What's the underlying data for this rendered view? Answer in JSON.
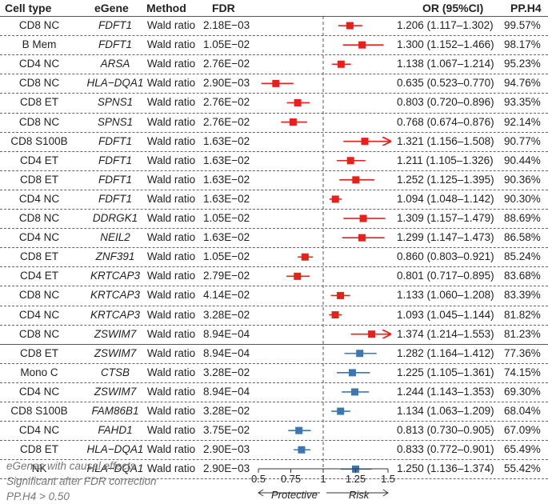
{
  "header": {
    "cell_type": "Cell type",
    "egene": "eGene",
    "method": "Method",
    "fdr": "FDR",
    "or": "OR (95%CI)",
    "pp": "PP.H4"
  },
  "footnote": [
    "eGenes with causal effects",
    "Significant after FDR correction",
    "PP.H4 > 0.50"
  ],
  "axis": {
    "protective_label": "Protective",
    "risk_label": "Risk",
    "ticks": [
      "0.5",
      "0.75",
      "1",
      "1.25",
      "1.5"
    ],
    "min": 0.5,
    "max": 1.5
  },
  "colors": {
    "risk": "#e8201c",
    "protective": "#3a78b5"
  },
  "chart_data": {
    "type": "forest",
    "xlim": [
      0.5,
      1.5
    ],
    "reference_line": 1,
    "rows": [
      {
        "cell_type": "CD8 NC",
        "egene": "FDFT1",
        "method": "Wald ratio",
        "fdr": "2.18E−03",
        "or": 1.206,
        "lo": 1.117,
        "hi": 1.302,
        "or_text": "1.206 (1.117–1.302)",
        "pp": "99.57%",
        "color": "risk",
        "arrow": false
      },
      {
        "cell_type": "B Mem",
        "egene": "FDFT1",
        "method": "Wald ratio",
        "fdr": "1.05E−02",
        "or": 1.3,
        "lo": 1.152,
        "hi": 1.466,
        "or_text": "1.300 (1.152–1.466)",
        "pp": "98.17%",
        "color": "risk",
        "arrow": false
      },
      {
        "cell_type": "CD4 NC",
        "egene": "ARSA",
        "method": "Wald ratio",
        "fdr": "2.76E−02",
        "or": 1.138,
        "lo": 1.067,
        "hi": 1.214,
        "or_text": "1.138 (1.067–1.214)",
        "pp": "95.23%",
        "color": "risk",
        "arrow": false
      },
      {
        "cell_type": "CD8 NC",
        "egene": "HLA−DQA1",
        "method": "Wald ratio",
        "fdr": "2.90E−03",
        "or": 0.635,
        "lo": 0.523,
        "hi": 0.77,
        "or_text": "0.635 (0.523–0.770)",
        "pp": "94.76%",
        "color": "risk",
        "arrow": false
      },
      {
        "cell_type": "CD8 ET",
        "egene": "SPNS1",
        "method": "Wald ratio",
        "fdr": "2.76E−02",
        "or": 0.803,
        "lo": 0.72,
        "hi": 0.896,
        "or_text": "0.803 (0.720–0.896)",
        "pp": "93.35%",
        "color": "risk",
        "arrow": false
      },
      {
        "cell_type": "CD8 NC",
        "egene": "SPNS1",
        "method": "Wald ratio",
        "fdr": "2.76E−02",
        "or": 0.768,
        "lo": 0.674,
        "hi": 0.876,
        "or_text": "0.768 (0.674–0.876)",
        "pp": "92.14%",
        "color": "risk",
        "arrow": false
      },
      {
        "cell_type": "CD8 S100B",
        "egene": "FDFT1",
        "method": "Wald ratio",
        "fdr": "1.63E−02",
        "or": 1.321,
        "lo": 1.156,
        "hi": 1.508,
        "or_text": "1.321 (1.156–1.508)",
        "pp": "90.77%",
        "color": "risk",
        "arrow": true
      },
      {
        "cell_type": "CD4 ET",
        "egene": "FDFT1",
        "method": "Wald ratio",
        "fdr": "1.63E−02",
        "or": 1.211,
        "lo": 1.105,
        "hi": 1.326,
        "or_text": "1.211 (1.105–1.326)",
        "pp": "90.44%",
        "color": "risk",
        "arrow": false
      },
      {
        "cell_type": "CD8 ET",
        "egene": "FDFT1",
        "method": "Wald ratio",
        "fdr": "1.63E−02",
        "or": 1.252,
        "lo": 1.125,
        "hi": 1.395,
        "or_text": "1.252 (1.125–1.395)",
        "pp": "90.36%",
        "color": "risk",
        "arrow": false
      },
      {
        "cell_type": "CD4 NC",
        "egene": "FDFT1",
        "method": "Wald ratio",
        "fdr": "1.63E−02",
        "or": 1.094,
        "lo": 1.048,
        "hi": 1.142,
        "or_text": "1.094 (1.048–1.142)",
        "pp": "90.30%",
        "color": "risk",
        "arrow": false
      },
      {
        "cell_type": "CD8 NC",
        "egene": "DDRGK1",
        "method": "Wald ratio",
        "fdr": "1.05E−02",
        "or": 1.309,
        "lo": 1.157,
        "hi": 1.479,
        "or_text": "1.309 (1.157–1.479)",
        "pp": "88.69%",
        "color": "risk",
        "arrow": false
      },
      {
        "cell_type": "CD4 NC",
        "egene": "NEIL2",
        "method": "Wald ratio",
        "fdr": "1.63E−02",
        "or": 1.299,
        "lo": 1.147,
        "hi": 1.473,
        "or_text": "1.299 (1.147–1.473)",
        "pp": "86.58%",
        "color": "risk",
        "arrow": false
      },
      {
        "cell_type": "CD8 ET",
        "egene": "ZNF391",
        "method": "Wald ratio",
        "fdr": "1.05E−02",
        "or": 0.86,
        "lo": 0.803,
        "hi": 0.921,
        "or_text": "0.860 (0.803–0.921)",
        "pp": "85.24%",
        "color": "risk",
        "arrow": false
      },
      {
        "cell_type": "CD4 ET",
        "egene": "KRTCAP3",
        "method": "Wald ratio",
        "fdr": "2.79E−02",
        "or": 0.801,
        "lo": 0.717,
        "hi": 0.895,
        "or_text": "0.801 (0.717–0.895)",
        "pp": "83.68%",
        "color": "risk",
        "arrow": false
      },
      {
        "cell_type": "CD8 NC",
        "egene": "KRTCAP3",
        "method": "Wald ratio",
        "fdr": "4.14E−02",
        "or": 1.133,
        "lo": 1.06,
        "hi": 1.208,
        "or_text": "1.133 (1.060–1.208)",
        "pp": "83.39%",
        "color": "risk",
        "arrow": false
      },
      {
        "cell_type": "CD4 NC",
        "egene": "KRTCAP3",
        "method": "Wald ratio",
        "fdr": "3.28E−02",
        "or": 1.093,
        "lo": 1.045,
        "hi": 1.144,
        "or_text": "1.093 (1.045–1.144)",
        "pp": "81.82%",
        "color": "risk",
        "arrow": false
      },
      {
        "cell_type": "CD8 NC",
        "egene": "ZSWIM7",
        "method": "Wald ratio",
        "fdr": "8.94E−04",
        "or": 1.374,
        "lo": 1.214,
        "hi": 1.553,
        "or_text": "1.374 (1.214–1.553)",
        "pp": "81.23%",
        "color": "risk",
        "arrow": true
      },
      {
        "cell_type": "CD8 ET",
        "egene": "ZSWIM7",
        "method": "Wald ratio",
        "fdr": "8.94E−04",
        "or": 1.282,
        "lo": 1.164,
        "hi": 1.412,
        "or_text": "1.282 (1.164–1.412)",
        "pp": "77.36%",
        "color": "protective",
        "arrow": false
      },
      {
        "cell_type": "Mono C",
        "egene": "CTSB",
        "method": "Wald ratio",
        "fdr": "3.28E−02",
        "or": 1.225,
        "lo": 1.105,
        "hi": 1.361,
        "or_text": "1.225 (1.105–1.361)",
        "pp": "74.15%",
        "color": "protective",
        "arrow": false
      },
      {
        "cell_type": "CD4 NC",
        "egene": "ZSWIM7",
        "method": "Wald ratio",
        "fdr": "8.94E−04",
        "or": 1.244,
        "lo": 1.143,
        "hi": 1.353,
        "or_text": "1.244 (1.143–1.353)",
        "pp": "69.30%",
        "color": "protective",
        "arrow": false
      },
      {
        "cell_type": "CD8 S100B",
        "egene": "FAM86B1",
        "method": "Wald ratio",
        "fdr": "3.28E−02",
        "or": 1.134,
        "lo": 1.063,
        "hi": 1.209,
        "or_text": "1.134 (1.063–1.209)",
        "pp": "68.04%",
        "color": "protective",
        "arrow": false
      },
      {
        "cell_type": "CD4 NC",
        "egene": "FAHD1",
        "method": "Wald ratio",
        "fdr": "3.75E−02",
        "or": 0.813,
        "lo": 0.73,
        "hi": 0.905,
        "or_text": "0.813 (0.730–0.905)",
        "pp": "67.09%",
        "color": "protective",
        "arrow": false
      },
      {
        "cell_type": "CD8 ET",
        "egene": "HLA−DQA1",
        "method": "Wald ratio",
        "fdr": "2.90E−03",
        "or": 0.833,
        "lo": 0.772,
        "hi": 0.901,
        "or_text": "0.833 (0.772–0.901)",
        "pp": "65.49%",
        "color": "protective",
        "arrow": false
      },
      {
        "cell_type": "NK",
        "egene": "HLA−DQA1",
        "method": "Wald ratio",
        "fdr": "2.90E−03",
        "or": 1.25,
        "lo": 1.136,
        "hi": 1.374,
        "or_text": "1.250 (1.136–1.374)",
        "pp": "55.42%",
        "color": "protective",
        "arrow": false
      }
    ]
  }
}
